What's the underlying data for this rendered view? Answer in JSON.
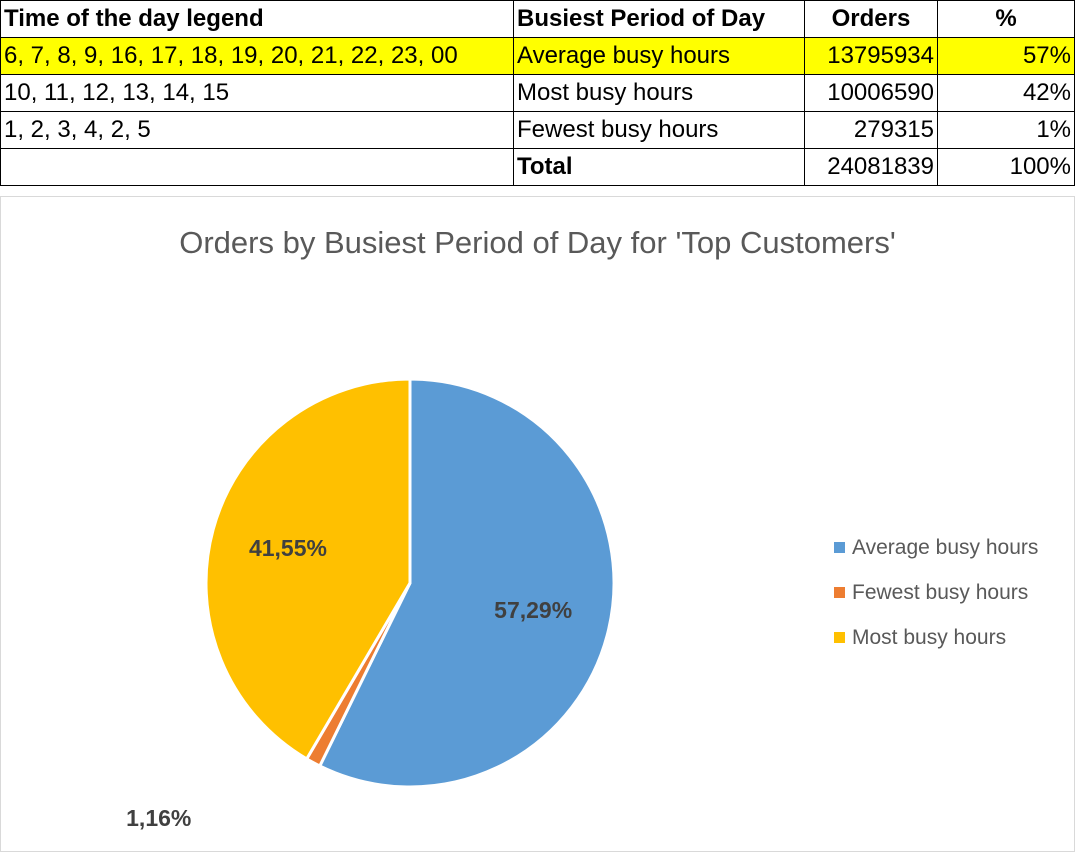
{
  "table": {
    "headers": [
      "Time of the day legend",
      "Busiest Period of Day",
      "Orders",
      "%"
    ],
    "rows": [
      {
        "hours": "6, 7, 8, 9, 16, 17, 18, 19, 20, 21, 22, 23, 00",
        "period": "Average busy hours",
        "orders": "13795934",
        "pct": "57%"
      },
      {
        "hours": "10, 11, 12, 13, 14, 15",
        "period": "Most busy hours",
        "orders": "10006590",
        "pct": "42%"
      },
      {
        "hours": "1, 2, 3, 4, 2, 5",
        "period": "Fewest busy hours",
        "orders": "279315",
        "pct": "1%"
      }
    ],
    "total": {
      "hours": "",
      "label": "Total",
      "orders": "24081839",
      "pct": "100%"
    },
    "highlight_color": "#ffff00"
  },
  "chart_data": {
    "type": "pie",
    "title": "Orders by Busiest Period of Day for 'Top Customers'",
    "slices": [
      {
        "label": "Average busy hours",
        "value": 57.29,
        "display": "57,29%",
        "color": "#5b9bd5"
      },
      {
        "label": "Fewest busy hours",
        "value": 1.16,
        "display": "1,16%",
        "color": "#ed7d31"
      },
      {
        "label": "Most busy hours",
        "value": 41.55,
        "display": "41,55%",
        "color": "#ffc000"
      }
    ],
    "legend_position": "right"
  }
}
